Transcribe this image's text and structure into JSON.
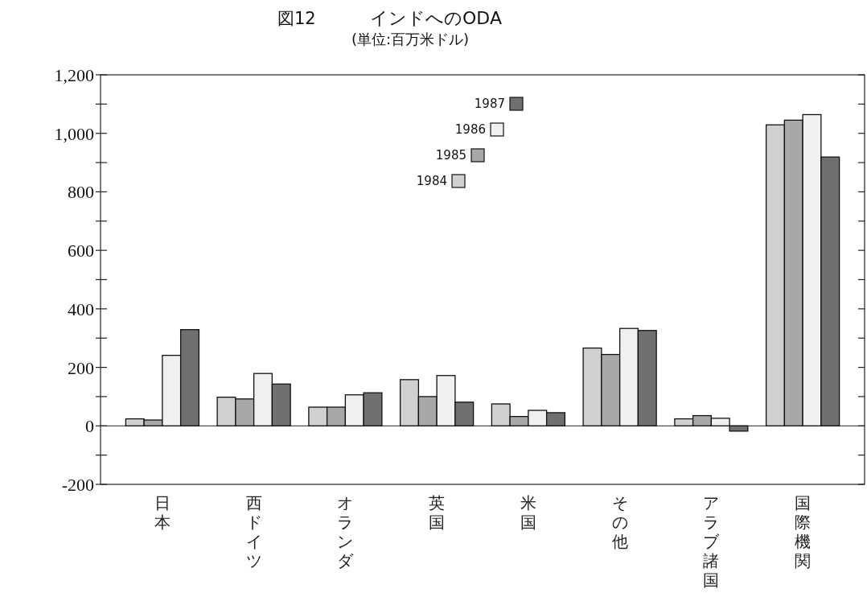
{
  "chart_data": {
    "type": "bar",
    "title": "インドへのODA",
    "subtitle": "(単位:百万米ドル)",
    "annotations": [
      "図12"
    ],
    "categories": [
      "日本",
      "西ドイツ",
      "オランダ",
      "英国",
      "米国",
      "その他",
      "アラブ諸国",
      "国際機関"
    ],
    "series": [
      {
        "name": "1984",
        "color": "#d0d0d0",
        "values": [
          24,
          98,
          64,
          158,
          75,
          266,
          24,
          1029
        ]
      },
      {
        "name": "1985",
        "color": "#a8a8a8",
        "values": [
          20,
          92,
          64,
          100,
          32,
          244,
          35,
          1045
        ]
      },
      {
        "name": "1986",
        "color": "#f0f0f0",
        "values": [
          241,
          179,
          106,
          172,
          53,
          333,
          26,
          1064
        ]
      },
      {
        "name": "1987",
        "color": "#707070",
        "values": [
          329,
          143,
          113,
          81,
          45,
          326,
          -18,
          919
        ]
      }
    ],
    "ylim": [
      -200,
      1200
    ],
    "yticks": [
      {
        "value": -200,
        "label": "-200"
      },
      {
        "value": -100,
        "label": null
      },
      0,
      {
        "value": 100,
        "label": null
      },
      200,
      {
        "value": 300,
        "label": null
      },
      400,
      {
        "value": 500,
        "label": null
      },
      600,
      {
        "value": 700,
        "label": null
      },
      800,
      {
        "value": 900,
        "label": null
      },
      {
        "value": 1000,
        "label": "1,000"
      },
      {
        "value": 1100,
        "label": null
      },
      {
        "value": 1200,
        "label": "1,200"
      }
    ],
    "grid": false,
    "ref_lines": [
      {
        "axis": "y",
        "value": 0
      }
    ],
    "legend": "top"
  }
}
